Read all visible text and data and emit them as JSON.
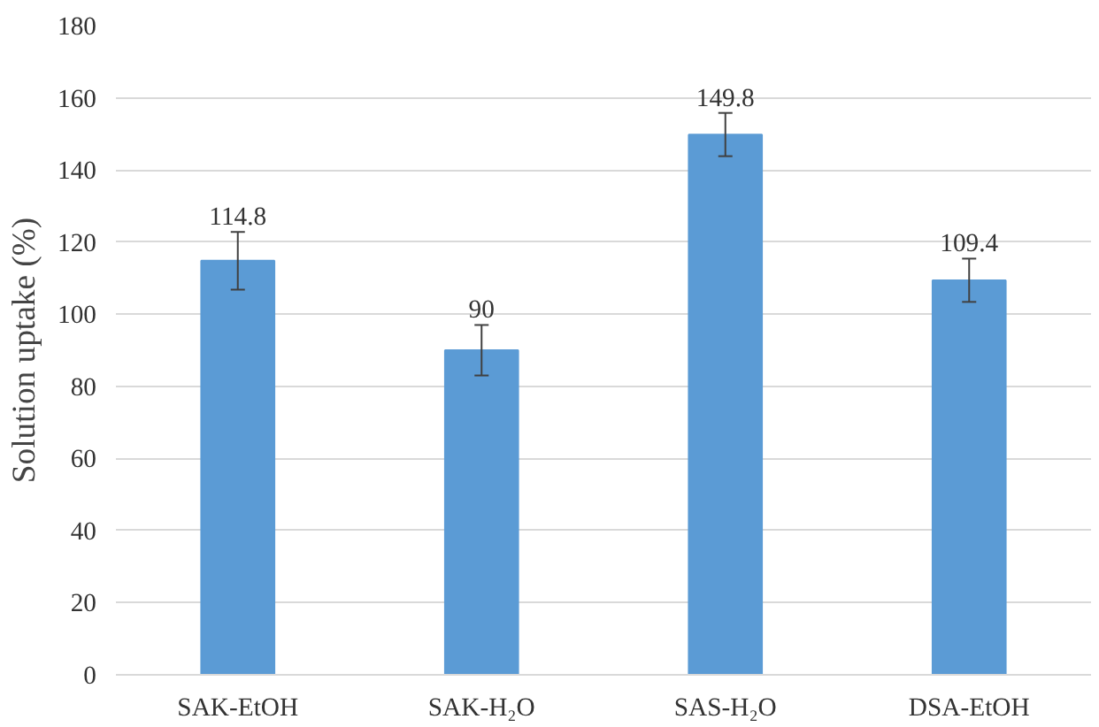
{
  "chart_data": {
    "type": "bar",
    "ylabel": "Solution uptake (%)",
    "categories": [
      "SAK-EtOH",
      "SAK-H₂O",
      "SAS-H₂O",
      "DSA-EtOH"
    ],
    "values": [
      114.8,
      90,
      149.8,
      109.4
    ],
    "errors": [
      8,
      7,
      6,
      6
    ],
    "color": "#5b9bd5",
    "data_labels": true,
    "ylim": [
      0,
      180
    ],
    "yticks": [
      0,
      20,
      40,
      60,
      80,
      100,
      120,
      140,
      160,
      180
    ],
    "grid": "y"
  }
}
